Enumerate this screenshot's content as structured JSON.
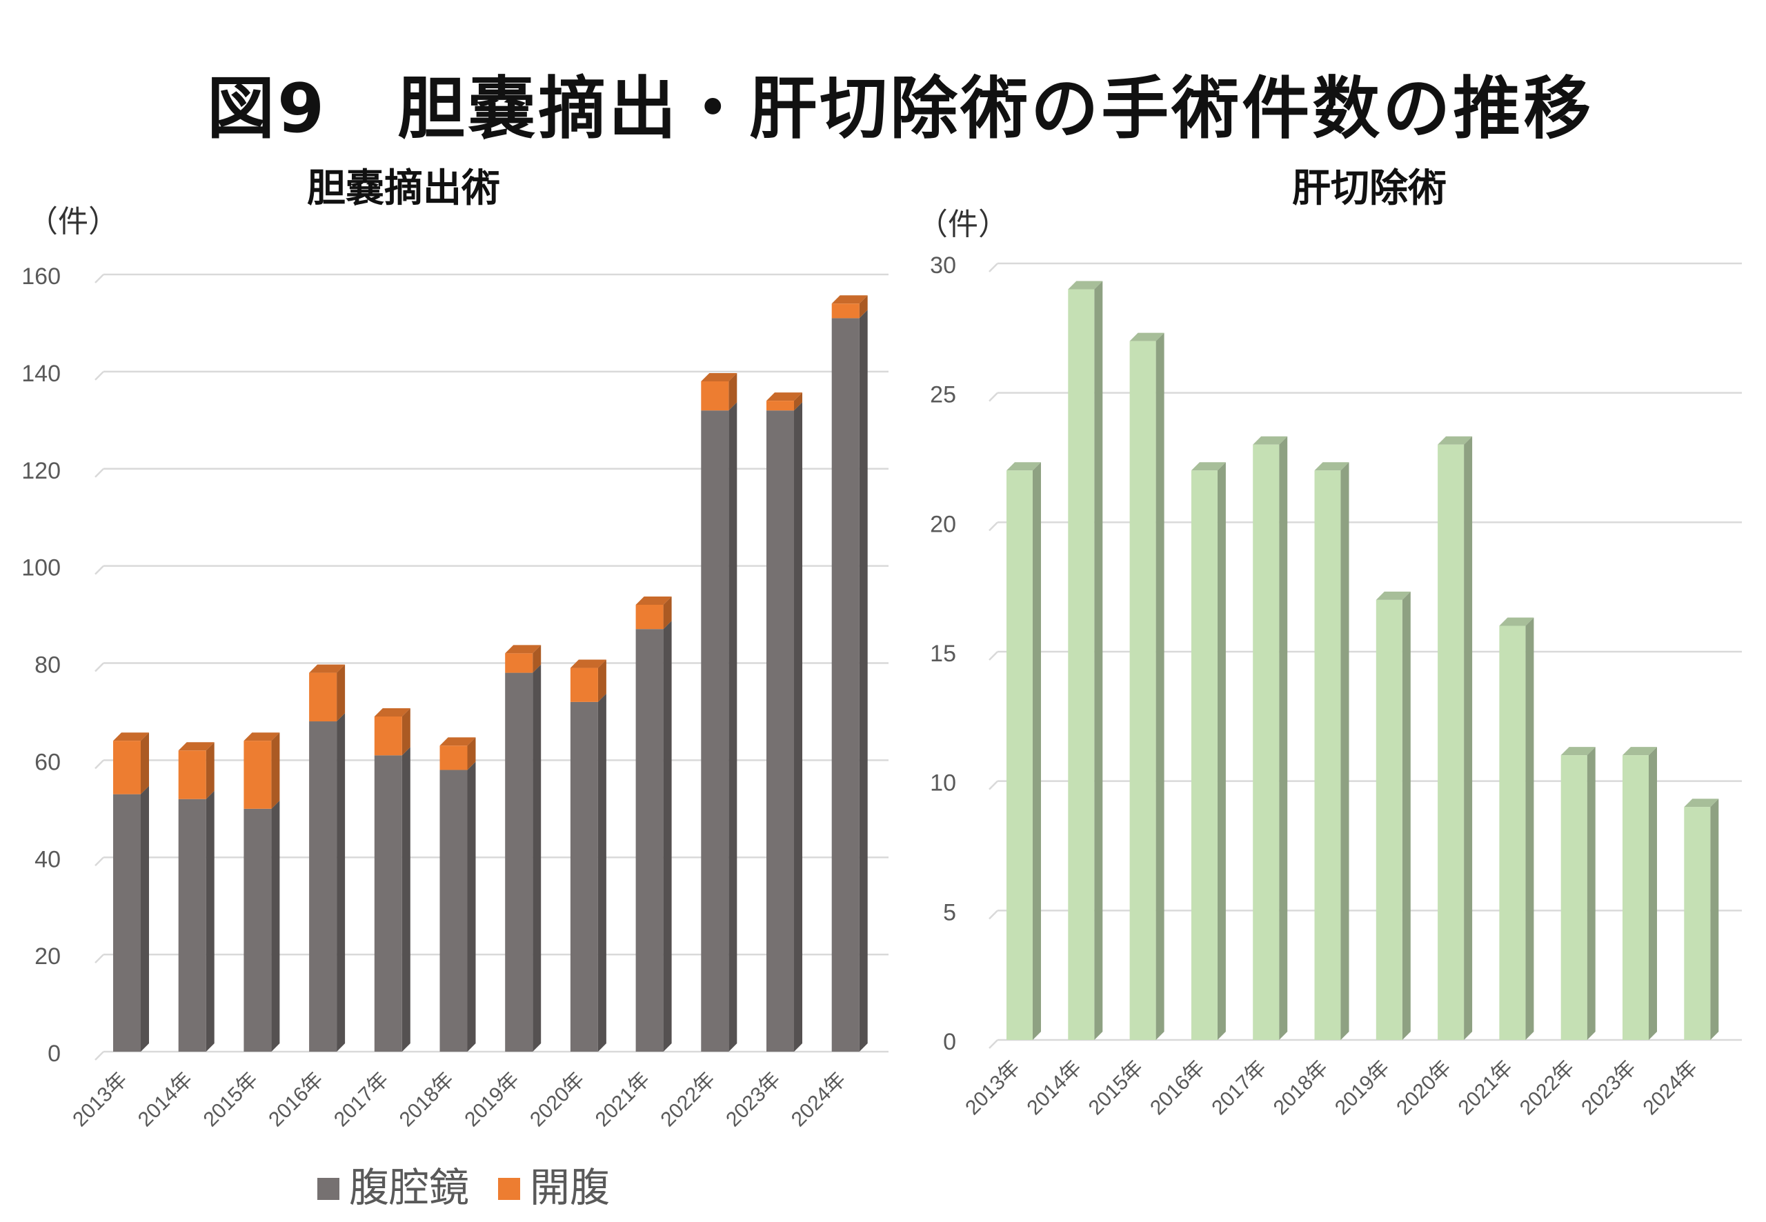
{
  "figure_title": "図9　胆嚢摘出・肝切除術の手術件数の推移",
  "colors": {
    "laparoscopic": "#767171",
    "open": "#ED7D31",
    "hepatectomy": "#C5E0B4",
    "grid": "#D9D9D9",
    "tick_text": "#595959"
  },
  "chart_data": [
    {
      "type": "bar",
      "stacked": true,
      "title": "胆嚢摘出術",
      "unit_label": "（件）",
      "categories": [
        "2013年",
        "2014年",
        "2015年",
        "2016年",
        "2017年",
        "2018年",
        "2019年",
        "2020年",
        "2021年",
        "2022年",
        "2023年",
        "2024年"
      ],
      "series": [
        {
          "name": "腹腔鏡",
          "values": [
            53,
            52,
            50,
            68,
            61,
            58,
            78,
            72,
            87,
            132,
            132,
            151
          ]
        },
        {
          "name": "開腹",
          "values": [
            11,
            10,
            14,
            10,
            8,
            5,
            4,
            7,
            5,
            6,
            2,
            3
          ]
        }
      ],
      "yticks": [
        0,
        20,
        40,
        60,
        80,
        100,
        120,
        140,
        160
      ],
      "ylim": [
        0,
        160
      ],
      "legend": [
        "腹腔鏡",
        "開腹"
      ],
      "legend_position": "bottom"
    },
    {
      "type": "bar",
      "title": "肝切除術",
      "unit_label": "（件）",
      "categories": [
        "2013年",
        "2014年",
        "2015年",
        "2016年",
        "2017年",
        "2018年",
        "2019年",
        "2020年",
        "2021年",
        "2022年",
        "2023年",
        "2024年"
      ],
      "values": [
        22,
        29,
        27,
        22,
        23,
        22,
        17,
        23,
        16,
        11,
        11,
        9
      ],
      "yticks": [
        0,
        5,
        10,
        15,
        20,
        25,
        30
      ],
      "ylim": [
        0,
        30
      ]
    }
  ]
}
